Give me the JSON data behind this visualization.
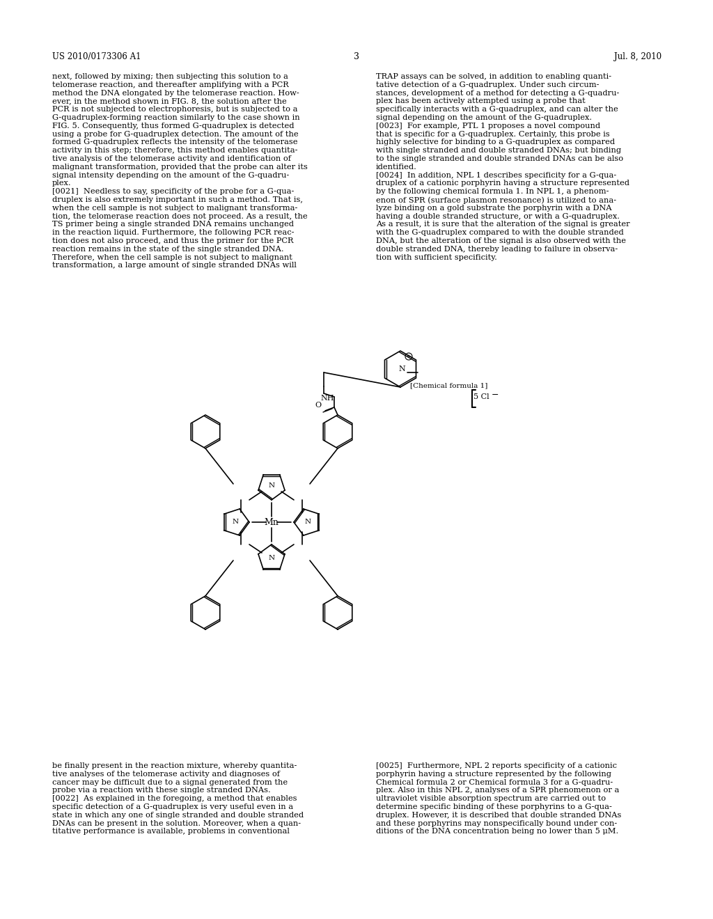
{
  "page_header_left": "US 2010/0173306 A1",
  "page_header_right": "Jul. 8, 2010",
  "page_number": "3",
  "chemical_formula_label": "[Chemical formula 1]",
  "left_column_text": [
    "next, followed by mixing; then subjecting this solution to a",
    "telomerase reaction, and thereafter amplifying with a PCR",
    "method the DNA elongated by the telomerase reaction. How-",
    "ever, in the method shown in FIG. 8, the solution after the",
    "PCR is not subjected to electrophoresis, but is subjected to a",
    "G-quadruplex-forming reaction similarly to the case shown in",
    "FIG. 5. Consequently, thus formed G-quadruplex is detected",
    "using a probe for G-quadruplex detection. The amount of the",
    "formed G-quadruplex reflects the intensity of the telomerase",
    "activity in this step; therefore, this method enables quantita-",
    "tive analysis of the telomerase activity and identification of",
    "malignant transformation, provided that the probe can alter its",
    "signal intensity depending on the amount of the G-quadru-",
    "plex.",
    "[0021]  Needless to say, specificity of the probe for a G-qua-",
    "druplex is also extremely important in such a method. That is,",
    "when the cell sample is not subject to malignant transforma-",
    "tion, the telomerase reaction does not proceed. As a result, the",
    "TS primer being a single stranded DNA remains unchanged",
    "in the reaction liquid. Furthermore, the following PCR reac-",
    "tion does not also proceed, and thus the primer for the PCR",
    "reaction remains in the state of the single stranded DNA.",
    "Therefore, when the cell sample is not subject to malignant",
    "transformation, a large amount of single stranded DNAs will"
  ],
  "right_column_text": [
    "TRAP assays can be solved, in addition to enabling quanti-",
    "tative detection of a G-quadruplex. Under such circum-",
    "stances, development of a method for detecting a G-quadru-",
    "plex has been actively attempted using a probe that",
    "specifically interacts with a G-quadruplex, and can alter the",
    "signal depending on the amount of the G-quadruplex.",
    "[0023]  For example, PTL 1 proposes a novel compound",
    "that is specific for a G-quadruplex. Certainly, this probe is",
    "highly selective for binding to a G-quadruplex as compared",
    "with single stranded and double stranded DNAs; but binding",
    "to the single stranded and double stranded DNAs can be also",
    "identified.",
    "[0024]  In addition, NPL 1 describes specificity for a G-qua-",
    "druplex of a cationic porphyrin having a structure represented",
    "by the following chemical formula 1. In NPL 1, a phenom-",
    "enon of SPR (surface plasmon resonance) is utilized to ana-",
    "lyze binding on a gold substrate the porphyrin with a DNA",
    "having a double stranded structure, or with a G-quadruplex.",
    "As a result, it is sure that the alteration of the signal is greater",
    "with the G-quadruplex compared to with the double stranded",
    "DNA, but the alteration of the signal is also observed with the",
    "double stranded DNA, thereby leading to failure in observa-",
    "tion with sufficient specificity."
  ],
  "bottom_left_text": [
    "be finally present in the reaction mixture, whereby quantita-",
    "tive analyses of the telomerase activity and diagnoses of",
    "cancer may be difficult due to a signal generated from the",
    "probe via a reaction with these single stranded DNAs.",
    "[0022]  As explained in the foregoing, a method that enables",
    "specific detection of a G-quadruplex is very useful even in a",
    "state in which any one of single stranded and double stranded",
    "DNAs can be present in the solution. Moreover, when a quan-",
    "titative performance is available, problems in conventional"
  ],
  "bottom_right_text": [
    "[0025]  Furthermore, NPL 2 reports specificity of a cationic",
    "porphyrin having a structure represented by the following",
    "Chemical formula 2 or Chemical formula 3 for a G-quadru-",
    "plex. Also in this NPL 2, analyses of a SPR phenomenon or a",
    "ultraviolet visible absorption spectrum are carried out to",
    "determine specific binding of these porphyrins to a G-qua-",
    "druplex. However, it is described that double stranded DNAs",
    "and these porphyrins may nonspecifically bound under con-",
    "ditions of the DNA concentration being no lower than 5 μM."
  ],
  "background_color": "#ffffff",
  "text_color": "#000000",
  "font_size": 8.5
}
